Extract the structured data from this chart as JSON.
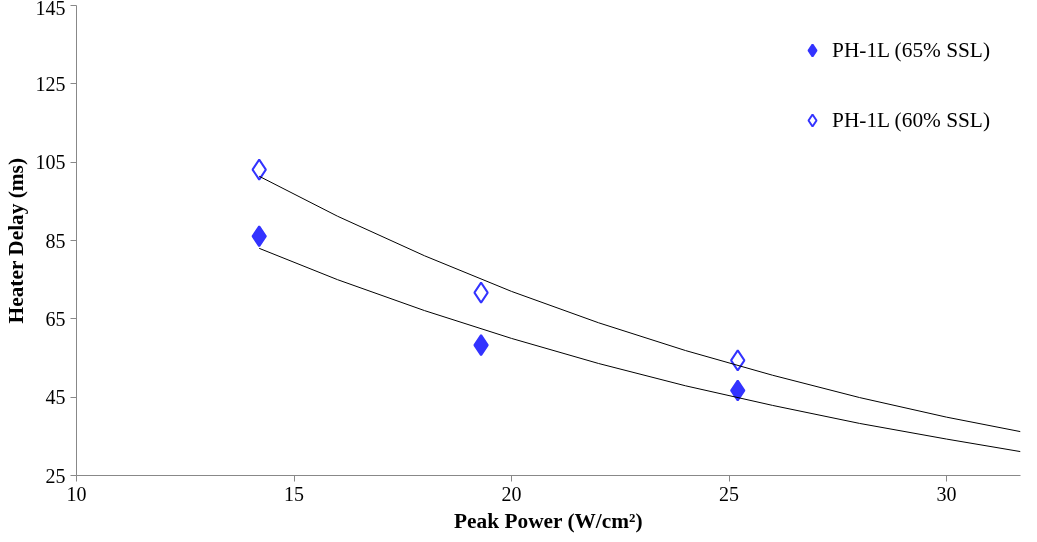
{
  "chart_data": {
    "type": "scatter",
    "xlabel": "Peak Power (W/cm²)",
    "ylabel": "Heater Delay (ms)",
    "xlim": [
      10,
      31.7
    ],
    "xticks": [
      10,
      15,
      20,
      25,
      30
    ],
    "ylim": [
      25,
      145
    ],
    "yticks": [
      25,
      45,
      65,
      85,
      105,
      125,
      145
    ],
    "grid": false,
    "legend": "top right",
    "marker": "diamond",
    "series": [
      {
        "name": "PH-1L (65% SSL)",
        "color": "#3333ff",
        "x": [
          14.2,
          19.3,
          25.2
        ],
        "values": [
          86.1,
          58.3,
          46.7
        ]
      },
      {
        "name": "PH-1L (60% SSL)",
        "color": "#3333ff",
        "marker": "diamond_open",
        "x": [
          14.2,
          19.3,
          25.2
        ],
        "values": [
          103.1,
          71.7,
          54.4
        ]
      },
      {
        "type": "line",
        "color": "#000000",
        "marker": "none",
        "x": [
          14.2,
          16,
          18,
          20,
          22,
          24,
          26,
          28,
          30,
          31.7
        ],
        "values": [
          83,
          75.0,
          67.1,
          60.0,
          53.6,
          47.9,
          42.9,
          38.3,
          34.3,
          31.1
        ]
      },
      {
        "type": "line",
        "color": "#000000",
        "marker": "none",
        "x": [
          14.2,
          16,
          18,
          20,
          22,
          24,
          26,
          28,
          30,
          31.7
        ],
        "values": [
          101.4,
          91.2,
          81.1,
          72.0,
          64.0,
          56.9,
          50.6,
          44.9,
          39.9,
          36.2
        ]
      }
    ]
  }
}
